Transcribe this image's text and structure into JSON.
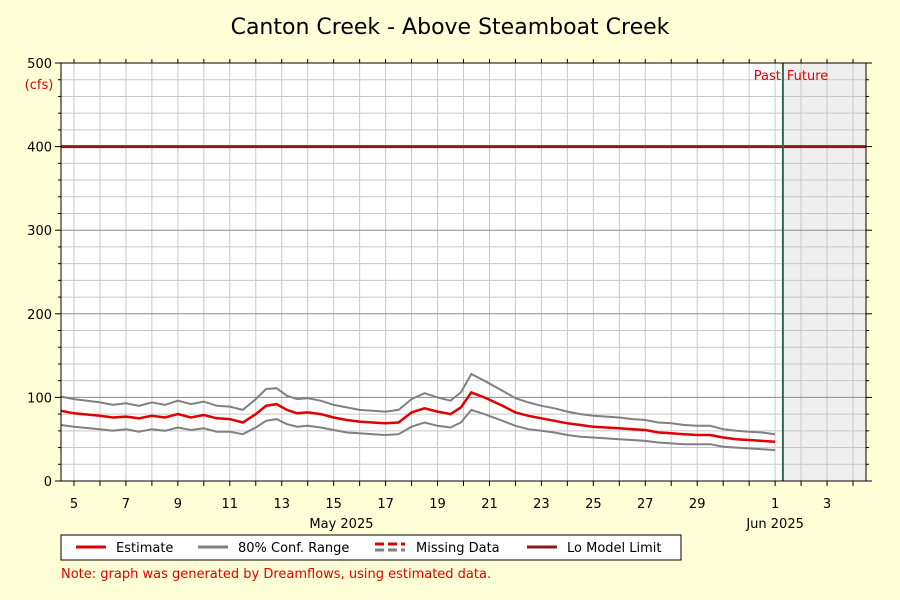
{
  "chart_data": {
    "type": "line",
    "title": "Canton Creek - Above Steamboat Creek",
    "ylabel": "(cfs)",
    "ylim": [
      0,
      500
    ],
    "y_ticks": [
      0,
      100,
      200,
      300,
      400,
      500
    ],
    "x_tick_labels": [
      "5",
      "7",
      "9",
      "11",
      "13",
      "15",
      "17",
      "19",
      "21",
      "23",
      "25",
      "27",
      "29",
      "1",
      "3"
    ],
    "x_tick_days": [
      5,
      7,
      9,
      11,
      13,
      15,
      17,
      19,
      21,
      23,
      25,
      27,
      29,
      32,
      34
    ],
    "month_labels": [
      {
        "text": "May 2025",
        "day": 15.3
      },
      {
        "text": "Jun 2025",
        "day": 32
      }
    ],
    "x_range_days": [
      4.5,
      35.5
    ],
    "now_day": 32.3,
    "past_label": "Past",
    "future_label": "Future",
    "grid": true,
    "legend_position": "bottom",
    "lo_model_limit": 400,
    "series": [
      {
        "name": "Estimate",
        "color": "#e00000",
        "x": [
          4.5,
          5,
          6,
          6.5,
          7,
          7.5,
          8,
          8.5,
          9,
          9.5,
          10,
          10.5,
          11,
          11.5,
          12,
          12.4,
          12.8,
          13.2,
          13.6,
          14,
          14.5,
          15,
          15.5,
          16,
          16.5,
          17,
          17.5,
          18,
          18.5,
          19,
          19.5,
          19.9,
          20.3,
          20.8,
          21.5,
          22,
          22.5,
          23,
          23.5,
          24,
          24.5,
          25,
          25.5,
          26,
          26.5,
          27,
          27.5,
          28,
          28.5,
          29,
          29.5,
          30,
          30.5,
          31,
          31.5,
          32
        ],
        "values": [
          84,
          81,
          78,
          76,
          77,
          75,
          78,
          76,
          80,
          76,
          79,
          75,
          74,
          70,
          80,
          90,
          92,
          85,
          81,
          82,
          80,
          76,
          73,
          71,
          70,
          69,
          70,
          82,
          87,
          83,
          80,
          88,
          106,
          100,
          90,
          82,
          78,
          75,
          72,
          69,
          67,
          65,
          64,
          63,
          62,
          61,
          58,
          57,
          56,
          55,
          55,
          52,
          50,
          49,
          48,
          47
        ]
      },
      {
        "name": "80% Conf. Range",
        "color": "#808080",
        "x": [
          4.5,
          5,
          6,
          6.5,
          7,
          7.5,
          8,
          8.5,
          9,
          9.5,
          10,
          10.5,
          11,
          11.5,
          12,
          12.4,
          12.8,
          13.2,
          13.6,
          14,
          14.5,
          15,
          15.5,
          16,
          16.5,
          17,
          17.5,
          18,
          18.5,
          19,
          19.5,
          19.9,
          20.3,
          20.8,
          21.5,
          22,
          22.5,
          23,
          23.5,
          24,
          24.5,
          25,
          25.5,
          26,
          26.5,
          27,
          27.5,
          28,
          28.5,
          29,
          29.5,
          30,
          30.5,
          31,
          31.5,
          32
        ],
        "upper": [
          101,
          98,
          94,
          91,
          93,
          90,
          94,
          91,
          96,
          92,
          95,
          90,
          89,
          85,
          98,
          110,
          111,
          102,
          98,
          99,
          96,
          91,
          88,
          85,
          84,
          83,
          85,
          98,
          105,
          100,
          96,
          106,
          128,
          120,
          108,
          99,
          94,
          90,
          87,
          83,
          80,
          78,
          77,
          76,
          74,
          73,
          70,
          69,
          67,
          66,
          66,
          62,
          60,
          59,
          58,
          56
        ],
        "lower": [
          67,
          65,
          62,
          60,
          62,
          59,
          62,
          60,
          64,
          61,
          63,
          59,
          59,
          56,
          64,
          72,
          74,
          68,
          65,
          66,
          64,
          61,
          58,
          57,
          56,
          55,
          56,
          65,
          70,
          66,
          64,
          70,
          85,
          80,
          72,
          66,
          62,
          60,
          58,
          55,
          53,
          52,
          51,
          50,
          49,
          48,
          46,
          45,
          44,
          44,
          44,
          41,
          40,
          39,
          38,
          37
        ]
      },
      {
        "name": "Missing Data",
        "color": "#e00000"
      },
      {
        "name": "Lo Model Limit",
        "color": "#8b1a1a"
      }
    ],
    "note": "Note: graph was generated by Dreamflows, using estimated data."
  }
}
